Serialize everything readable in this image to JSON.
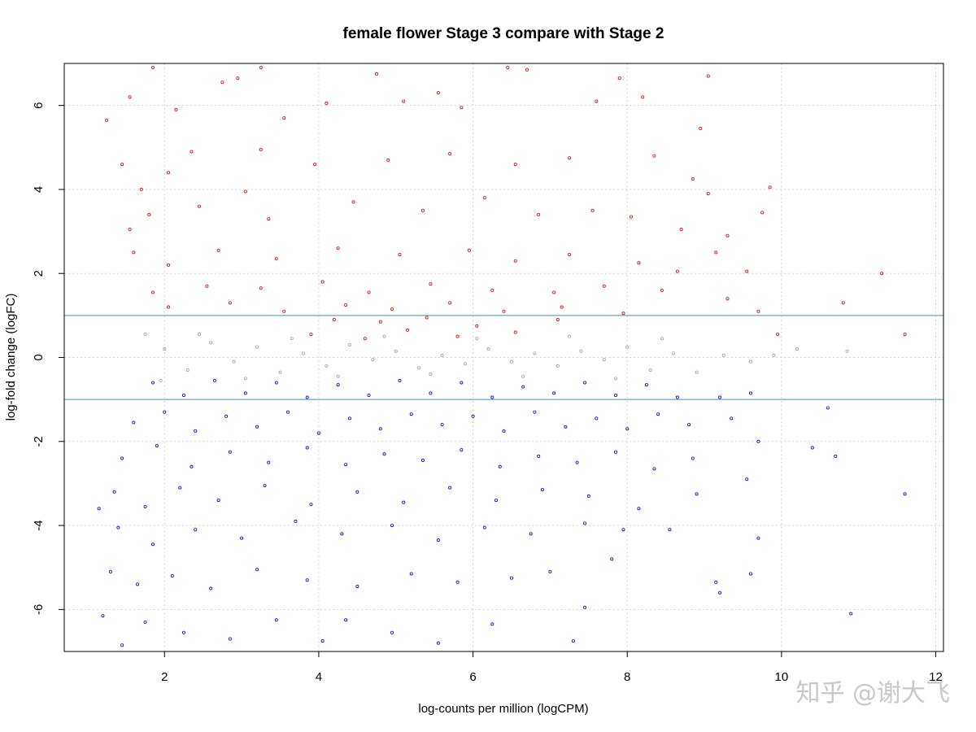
{
  "chart_data": {
    "type": "scatter",
    "title": "female flower Stage 3 compare with Stage 2",
    "xlabel": "log-counts per million (logCPM)",
    "ylabel": "log-fold change (logFC)",
    "xlim": [
      0.7,
      12.1
    ],
    "ylim": [
      -7,
      7
    ],
    "x_ticks": [
      2,
      4,
      6,
      8,
      10,
      12
    ],
    "y_ticks": [
      -6,
      -4,
      -2,
      0,
      2,
      4,
      6
    ],
    "grid": true,
    "legend": "none",
    "reference_lines": [
      {
        "y": 1,
        "color": "#3f8fbf"
      },
      {
        "y": -1,
        "color": "#3f8fbf"
      }
    ],
    "series": [
      {
        "color": "#dd0000",
        "points": [
          [
            1.85,
            6.9
          ],
          [
            3.25,
            6.9
          ],
          [
            2.95,
            6.65
          ],
          [
            2.75,
            6.55
          ],
          [
            4.75,
            6.75
          ],
          [
            5.55,
            6.3
          ],
          [
            6.45,
            6.9
          ],
          [
            6.7,
            6.85
          ],
          [
            7.9,
            6.65
          ],
          [
            9.05,
            6.7
          ],
          [
            1.25,
            5.65
          ],
          [
            1.55,
            6.2
          ],
          [
            2.15,
            5.9
          ],
          [
            3.55,
            5.7
          ],
          [
            4.1,
            6.05
          ],
          [
            5.1,
            6.1
          ],
          [
            5.85,
            5.95
          ],
          [
            7.6,
            6.1
          ],
          [
            8.2,
            6.2
          ],
          [
            8.95,
            5.45
          ],
          [
            1.45,
            4.6
          ],
          [
            1.7,
            4.0
          ],
          [
            2.05,
            4.4
          ],
          [
            2.35,
            4.9
          ],
          [
            3.25,
            4.95
          ],
          [
            3.95,
            4.6
          ],
          [
            4.9,
            4.7
          ],
          [
            5.7,
            4.85
          ],
          [
            6.55,
            4.6
          ],
          [
            7.25,
            4.75
          ],
          [
            8.35,
            4.8
          ],
          [
            8.85,
            4.25
          ],
          [
            9.05,
            3.9
          ],
          [
            9.85,
            4.05
          ],
          [
            1.55,
            3.05
          ],
          [
            1.8,
            3.4
          ],
          [
            2.45,
            3.6
          ],
          [
            3.05,
            3.95
          ],
          [
            3.35,
            3.3
          ],
          [
            4.45,
            3.7
          ],
          [
            5.35,
            3.5
          ],
          [
            6.15,
            3.8
          ],
          [
            6.85,
            3.4
          ],
          [
            7.55,
            3.5
          ],
          [
            8.05,
            3.35
          ],
          [
            8.7,
            3.05
          ],
          [
            9.3,
            2.9
          ],
          [
            9.75,
            3.45
          ],
          [
            1.6,
            2.5
          ],
          [
            2.05,
            2.2
          ],
          [
            2.7,
            2.55
          ],
          [
            3.45,
            2.35
          ],
          [
            4.25,
            2.6
          ],
          [
            5.05,
            2.45
          ],
          [
            5.95,
            2.55
          ],
          [
            6.55,
            2.3
          ],
          [
            7.25,
            2.45
          ],
          [
            8.15,
            2.25
          ],
          [
            8.65,
            2.05
          ],
          [
            9.15,
            2.5
          ],
          [
            9.55,
            2.05
          ],
          [
            11.3,
            2.0
          ],
          [
            1.85,
            1.55
          ],
          [
            2.55,
            1.7
          ],
          [
            3.25,
            1.65
          ],
          [
            4.05,
            1.8
          ],
          [
            4.65,
            1.55
          ],
          [
            5.45,
            1.75
          ],
          [
            6.25,
            1.6
          ],
          [
            7.05,
            1.55
          ],
          [
            7.7,
            1.7
          ],
          [
            8.45,
            1.6
          ],
          [
            9.3,
            1.4
          ],
          [
            9.7,
            1.1
          ],
          [
            10.8,
            1.3
          ],
          [
            2.05,
            1.2
          ],
          [
            2.85,
            1.3
          ],
          [
            3.55,
            1.1
          ],
          [
            4.35,
            1.25
          ],
          [
            4.95,
            1.15
          ],
          [
            5.7,
            1.3
          ],
          [
            6.4,
            1.1
          ],
          [
            7.15,
            1.2
          ],
          [
            7.95,
            1.05
          ],
          [
            9.95,
            0.55
          ],
          [
            11.6,
            0.55
          ],
          [
            3.9,
            0.55
          ],
          [
            4.6,
            0.45
          ],
          [
            5.15,
            0.65
          ],
          [
            5.8,
            0.5
          ],
          [
            6.55,
            0.6
          ],
          [
            4.2,
            0.9
          ],
          [
            4.8,
            0.85
          ],
          [
            5.4,
            0.95
          ],
          [
            6.05,
            0.75
          ],
          [
            7.1,
            0.9
          ]
        ]
      },
      {
        "color": "#a0a0a0",
        "points": [
          [
            1.75,
            0.55
          ],
          [
            2.0,
            0.2
          ],
          [
            2.3,
            -0.3
          ],
          [
            2.6,
            0.35
          ],
          [
            2.9,
            -0.1
          ],
          [
            3.2,
            0.25
          ],
          [
            3.5,
            -0.35
          ],
          [
            3.8,
            0.1
          ],
          [
            4.1,
            -0.2
          ],
          [
            4.4,
            0.3
          ],
          [
            4.7,
            -0.05
          ],
          [
            5.0,
            0.15
          ],
          [
            5.3,
            -0.25
          ],
          [
            5.6,
            0.05
          ],
          [
            5.9,
            -0.15
          ],
          [
            6.2,
            0.2
          ],
          [
            6.5,
            -0.1
          ],
          [
            6.8,
            0.1
          ],
          [
            7.1,
            -0.2
          ],
          [
            7.4,
            0.15
          ],
          [
            7.7,
            -0.05
          ],
          [
            8.0,
            0.25
          ],
          [
            8.3,
            -0.3
          ],
          [
            8.6,
            0.1
          ],
          [
            8.9,
            -0.35
          ],
          [
            9.25,
            0.05
          ],
          [
            9.6,
            -0.1
          ],
          [
            9.9,
            0.05
          ],
          [
            10.2,
            0.2
          ],
          [
            10.85,
            0.15
          ],
          [
            1.95,
            -0.55
          ],
          [
            2.45,
            0.55
          ],
          [
            3.05,
            -0.5
          ],
          [
            3.65,
            0.45
          ],
          [
            4.25,
            -0.45
          ],
          [
            4.85,
            0.5
          ],
          [
            5.45,
            -0.4
          ],
          [
            6.05,
            0.45
          ],
          [
            6.65,
            -0.45
          ],
          [
            7.25,
            0.5
          ],
          [
            7.85,
            -0.5
          ],
          [
            8.45,
            0.45
          ]
        ]
      },
      {
        "color": "#0000cc",
        "points": [
          [
            1.85,
            -0.6
          ],
          [
            2.25,
            -0.9
          ],
          [
            2.65,
            -0.55
          ],
          [
            3.05,
            -0.85
          ],
          [
            3.45,
            -0.6
          ],
          [
            3.85,
            -0.95
          ],
          [
            4.25,
            -0.65
          ],
          [
            4.65,
            -0.9
          ],
          [
            5.05,
            -0.55
          ],
          [
            5.45,
            -0.85
          ],
          [
            5.85,
            -0.6
          ],
          [
            6.25,
            -0.95
          ],
          [
            6.65,
            -0.7
          ],
          [
            7.05,
            -0.85
          ],
          [
            7.45,
            -0.6
          ],
          [
            7.85,
            -0.9
          ],
          [
            8.25,
            -0.65
          ],
          [
            8.65,
            -0.95
          ],
          [
            9.2,
            -0.95
          ],
          [
            9.6,
            -0.85
          ],
          [
            1.6,
            -1.55
          ],
          [
            2.0,
            -1.3
          ],
          [
            2.4,
            -1.75
          ],
          [
            2.8,
            -1.4
          ],
          [
            3.2,
            -1.65
          ],
          [
            3.6,
            -1.3
          ],
          [
            4.0,
            -1.8
          ],
          [
            4.4,
            -1.45
          ],
          [
            4.8,
            -1.7
          ],
          [
            5.2,
            -1.35
          ],
          [
            5.6,
            -1.6
          ],
          [
            6.0,
            -1.4
          ],
          [
            6.4,
            -1.75
          ],
          [
            6.8,
            -1.3
          ],
          [
            7.2,
            -1.65
          ],
          [
            7.6,
            -1.45
          ],
          [
            8.0,
            -1.7
          ],
          [
            8.4,
            -1.35
          ],
          [
            8.8,
            -1.6
          ],
          [
            9.35,
            -1.45
          ],
          [
            10.6,
            -1.2
          ],
          [
            1.45,
            -2.4
          ],
          [
            1.9,
            -2.1
          ],
          [
            2.35,
            -2.6
          ],
          [
            2.85,
            -2.25
          ],
          [
            3.35,
            -2.5
          ],
          [
            3.85,
            -2.15
          ],
          [
            4.35,
            -2.55
          ],
          [
            4.85,
            -2.3
          ],
          [
            5.35,
            -2.45
          ],
          [
            5.85,
            -2.2
          ],
          [
            6.35,
            -2.6
          ],
          [
            6.85,
            -2.35
          ],
          [
            7.35,
            -2.5
          ],
          [
            7.85,
            -2.25
          ],
          [
            8.35,
            -2.65
          ],
          [
            8.85,
            -2.4
          ],
          [
            9.7,
            -2.0
          ],
          [
            10.4,
            -2.15
          ],
          [
            10.7,
            -2.35
          ],
          [
            1.35,
            -3.2
          ],
          [
            1.75,
            -3.55
          ],
          [
            2.2,
            -3.1
          ],
          [
            2.7,
            -3.4
          ],
          [
            3.3,
            -3.05
          ],
          [
            3.9,
            -3.5
          ],
          [
            4.5,
            -3.2
          ],
          [
            5.1,
            -3.45
          ],
          [
            5.7,
            -3.1
          ],
          [
            6.3,
            -3.4
          ],
          [
            6.9,
            -3.15
          ],
          [
            7.5,
            -3.3
          ],
          [
            8.15,
            -3.6
          ],
          [
            8.9,
            -3.25
          ],
          [
            9.55,
            -2.9
          ],
          [
            11.6,
            -3.25
          ],
          [
            1.15,
            -3.6
          ],
          [
            1.4,
            -4.05
          ],
          [
            1.85,
            -4.45
          ],
          [
            2.4,
            -4.1
          ],
          [
            3.0,
            -4.3
          ],
          [
            3.7,
            -3.9
          ],
          [
            4.3,
            -4.2
          ],
          [
            4.95,
            -4.0
          ],
          [
            5.55,
            -4.35
          ],
          [
            6.15,
            -4.05
          ],
          [
            6.75,
            -4.2
          ],
          [
            7.45,
            -3.95
          ],
          [
            7.95,
            -4.1
          ],
          [
            8.55,
            -4.1
          ],
          [
            9.7,
            -4.3
          ],
          [
            1.3,
            -5.1
          ],
          [
            1.65,
            -5.4
          ],
          [
            2.1,
            -5.2
          ],
          [
            2.6,
            -5.5
          ],
          [
            3.2,
            -5.05
          ],
          [
            3.85,
            -5.3
          ],
          [
            4.5,
            -5.45
          ],
          [
            5.2,
            -5.15
          ],
          [
            5.8,
            -5.35
          ],
          [
            6.5,
            -5.25
          ],
          [
            7.0,
            -5.1
          ],
          [
            7.8,
            -4.8
          ],
          [
            9.15,
            -5.35
          ],
          [
            9.6,
            -5.15
          ],
          [
            1.2,
            -6.15
          ],
          [
            1.45,
            -6.85
          ],
          [
            1.75,
            -6.3
          ],
          [
            2.25,
            -6.55
          ],
          [
            2.85,
            -6.7
          ],
          [
            3.45,
            -6.25
          ],
          [
            4.05,
            -6.75
          ],
          [
            4.35,
            -6.25
          ],
          [
            4.95,
            -6.55
          ],
          [
            5.55,
            -6.8
          ],
          [
            6.25,
            -6.35
          ],
          [
            7.3,
            -6.75
          ],
          [
            7.45,
            -5.95
          ],
          [
            9.2,
            -5.6
          ],
          [
            10.9,
            -6.1
          ]
        ]
      }
    ]
  },
  "watermark": "知乎 @谢大飞"
}
